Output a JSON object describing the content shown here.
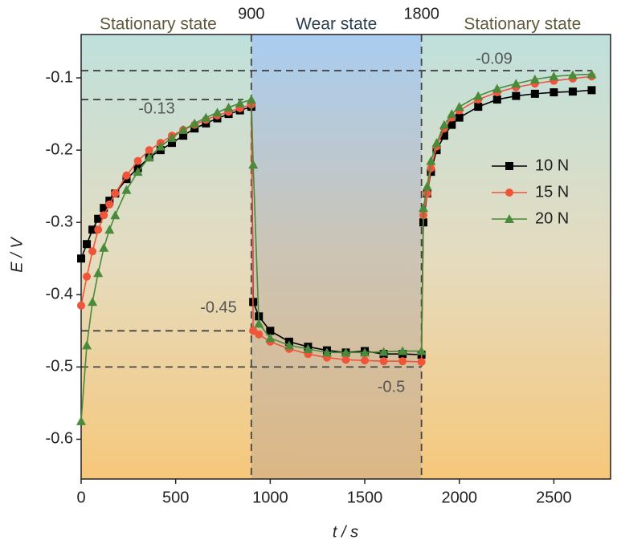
{
  "chart_data": {
    "type": "line",
    "xlabel": "t / s",
    "ylabel": "E / V",
    "xlim": [
      0,
      2800
    ],
    "ylim": [
      -0.655,
      -0.04
    ],
    "xticks": [
      0,
      500,
      1000,
      1500,
      2000,
      2500
    ],
    "yticks": [
      -0.6,
      -0.5,
      -0.4,
      -0.3,
      -0.2,
      -0.1
    ],
    "regions": [
      "Stationary state",
      "Wear state",
      "Stationary state"
    ],
    "vlines": [
      900,
      1800
    ],
    "hlines": [
      -0.09,
      -0.13,
      -0.45,
      -0.5
    ],
    "x": [
      0,
      30,
      60,
      90,
      120,
      150,
      180,
      240,
      300,
      360,
      420,
      480,
      540,
      600,
      660,
      720,
      780,
      840,
      900,
      910,
      940,
      1000,
      1100,
      1200,
      1300,
      1400,
      1500,
      1600,
      1700,
      1800,
      1810,
      1830,
      1850,
      1880,
      1920,
      1960,
      2000,
      2100,
      2200,
      2300,
      2400,
      2500,
      2600,
      2700
    ],
    "series": [
      {
        "name": "10 N",
        "color": "#000000",
        "marker": "square",
        "values": [
          -0.35,
          -0.33,
          -0.31,
          -0.295,
          -0.28,
          -0.27,
          -0.26,
          -0.24,
          -0.225,
          -0.21,
          -0.2,
          -0.19,
          -0.18,
          -0.17,
          -0.163,
          -0.156,
          -0.15,
          -0.145,
          -0.14,
          -0.41,
          -0.43,
          -0.45,
          -0.465,
          -0.472,
          -0.477,
          -0.48,
          -0.478,
          -0.482,
          -0.482,
          -0.483,
          -0.3,
          -0.26,
          -0.23,
          -0.2,
          -0.18,
          -0.165,
          -0.155,
          -0.14,
          -0.13,
          -0.125,
          -0.122,
          -0.12,
          -0.119,
          -0.117
        ]
      },
      {
        "name": "15 N",
        "color": "#f0553a",
        "marker": "circle",
        "values": [
          -0.415,
          -0.375,
          -0.34,
          -0.31,
          -0.29,
          -0.275,
          -0.26,
          -0.235,
          -0.215,
          -0.2,
          -0.19,
          -0.18,
          -0.172,
          -0.165,
          -0.158,
          -0.152,
          -0.147,
          -0.142,
          -0.137,
          -0.45,
          -0.455,
          -0.465,
          -0.475,
          -0.482,
          -0.487,
          -0.49,
          -0.491,
          -0.492,
          -0.492,
          -0.493,
          -0.29,
          -0.26,
          -0.225,
          -0.195,
          -0.17,
          -0.155,
          -0.145,
          -0.13,
          -0.12,
          -0.113,
          -0.108,
          -0.104,
          -0.101,
          -0.098
        ]
      },
      {
        "name": "20 N",
        "color": "#4a8a3a",
        "marker": "triangle",
        "values": [
          -0.575,
          -0.47,
          -0.41,
          -0.37,
          -0.335,
          -0.31,
          -0.29,
          -0.255,
          -0.23,
          -0.21,
          -0.195,
          -0.183,
          -0.172,
          -0.163,
          -0.155,
          -0.148,
          -0.141,
          -0.135,
          -0.13,
          -0.22,
          -0.44,
          -0.46,
          -0.47,
          -0.475,
          -0.48,
          -0.48,
          -0.48,
          -0.479,
          -0.478,
          -0.478,
          -0.28,
          -0.25,
          -0.215,
          -0.19,
          -0.165,
          -0.15,
          -0.14,
          -0.125,
          -0.115,
          -0.108,
          -0.102,
          -0.098,
          -0.096,
          -0.095
        ]
      }
    ]
  }
}
